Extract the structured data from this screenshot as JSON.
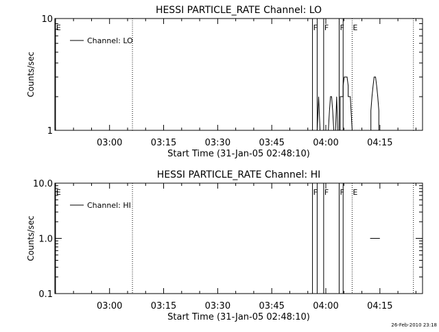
{
  "footer": {
    "timestamp": "26-Feb-2010 23:18"
  },
  "chart_data": [
    {
      "type": "line",
      "title": "HESSI PARTICLE_RATE Channel: LO",
      "xlabel": "Start Time (31-Jan-05 02:48:10)",
      "ylabel": "Counts/sec",
      "y_scale": "log",
      "ylim": [
        1,
        10
      ],
      "xlim_minutes": [
        -15.17,
        86.83
      ],
      "x_ticks": [
        {
          "t": 0,
          "label": "03:00"
        },
        {
          "t": 15,
          "label": "03:15"
        },
        {
          "t": 30,
          "label": "03:30"
        },
        {
          "t": 45,
          "label": "03:45"
        },
        {
          "t": 60,
          "label": "04:00"
        },
        {
          "t": 75,
          "label": "04:15"
        }
      ],
      "y_ticks": [
        {
          "v": 1,
          "label": "1"
        },
        {
          "v": 10,
          "label": "10"
        }
      ],
      "legend": {
        "position": "top-left",
        "entries": [
          "Channel: LO"
        ]
      },
      "vlines": [
        {
          "t": -15.0,
          "label": "E",
          "style": "solid"
        },
        {
          "t": 6.35,
          "label": "",
          "style": "dotted"
        },
        {
          "t": 56.3,
          "label": "F",
          "style": "solid"
        },
        {
          "t": 57.6,
          "label": "",
          "style": "solid"
        },
        {
          "t": 59.4,
          "label": "F",
          "style": "solid"
        },
        {
          "t": 63.7,
          "label": "F",
          "style": "solid"
        },
        {
          "t": 64.8,
          "label": "",
          "style": "solid"
        },
        {
          "t": 67.3,
          "label": "E",
          "style": "dotted"
        },
        {
          "t": 84.3,
          "label": "",
          "style": "dotted"
        }
      ],
      "series": [
        {
          "segments": [
            [
              [
                57.6,
                1
              ],
              [
                58.0,
                2
              ],
              [
                58.4,
                1
              ]
            ],
            [
              [
                60.7,
                1
              ],
              [
                61.0,
                1.5
              ],
              [
                61.3,
                2
              ],
              [
                61.6,
                2
              ],
              [
                61.9,
                1.5
              ],
              [
                62.2,
                1
              ]
            ],
            [
              [
                62.7,
                1
              ],
              [
                63.0,
                2
              ],
              [
                63.3,
                1
              ]
            ],
            [
              [
                64.0,
                1
              ],
              [
                64.0,
                2
              ],
              [
                64.8,
                2
              ],
              [
                64.8,
                2.5
              ],
              [
                65.1,
                3
              ],
              [
                65.9,
                3
              ],
              [
                66.2,
                2.5
              ],
              [
                66.2,
                2
              ],
              [
                66.8,
                2
              ],
              [
                67.3,
                1
              ]
            ],
            [
              [
                72.5,
                1
              ],
              [
                72.5,
                1.5
              ],
              [
                72.8,
                2
              ],
              [
                73.1,
                2.5
              ],
              [
                73.4,
                3
              ],
              [
                73.8,
                3
              ],
              [
                74.1,
                2.5
              ],
              [
                74.4,
                2
              ],
              [
                74.7,
                1.5
              ],
              [
                74.7,
                1
              ]
            ]
          ]
        }
      ]
    },
    {
      "type": "line",
      "title": "HESSI PARTICLE_RATE Channel: HI",
      "xlabel": "Start Time (31-Jan-05 02:48:10)",
      "ylabel": "Counts/sec",
      "y_scale": "log",
      "ylim": [
        0.1,
        10
      ],
      "xlim_minutes": [
        -15.17,
        86.83
      ],
      "x_ticks": [
        {
          "t": 0,
          "label": "03:00"
        },
        {
          "t": 15,
          "label": "03:15"
        },
        {
          "t": 30,
          "label": "03:30"
        },
        {
          "t": 45,
          "label": "03:45"
        },
        {
          "t": 60,
          "label": "04:00"
        },
        {
          "t": 75,
          "label": "04:15"
        }
      ],
      "y_ticks": [
        {
          "v": 0.1,
          "label": "0.1"
        },
        {
          "v": 1,
          "label": "1.0"
        },
        {
          "v": 10,
          "label": "10.0"
        }
      ],
      "legend": {
        "position": "top-left",
        "entries": [
          "Channel: HI"
        ]
      },
      "vlines": [
        {
          "t": -15.0,
          "label": "E",
          "style": "solid"
        },
        {
          "t": 6.35,
          "label": "",
          "style": "dotted"
        },
        {
          "t": 56.3,
          "label": "F",
          "style": "solid"
        },
        {
          "t": 57.6,
          "label": "",
          "style": "solid"
        },
        {
          "t": 59.4,
          "label": "F",
          "style": "solid"
        },
        {
          "t": 63.7,
          "label": "F",
          "style": "solid"
        },
        {
          "t": 64.8,
          "label": "",
          "style": "solid"
        },
        {
          "t": 67.3,
          "label": "E",
          "style": "dotted"
        },
        {
          "t": 84.3,
          "label": "",
          "style": "dotted"
        }
      ],
      "series": [
        {
          "segments": [
            [
              [
                72.3,
                1
              ],
              [
                75.0,
                1
              ]
            ]
          ]
        }
      ]
    }
  ]
}
